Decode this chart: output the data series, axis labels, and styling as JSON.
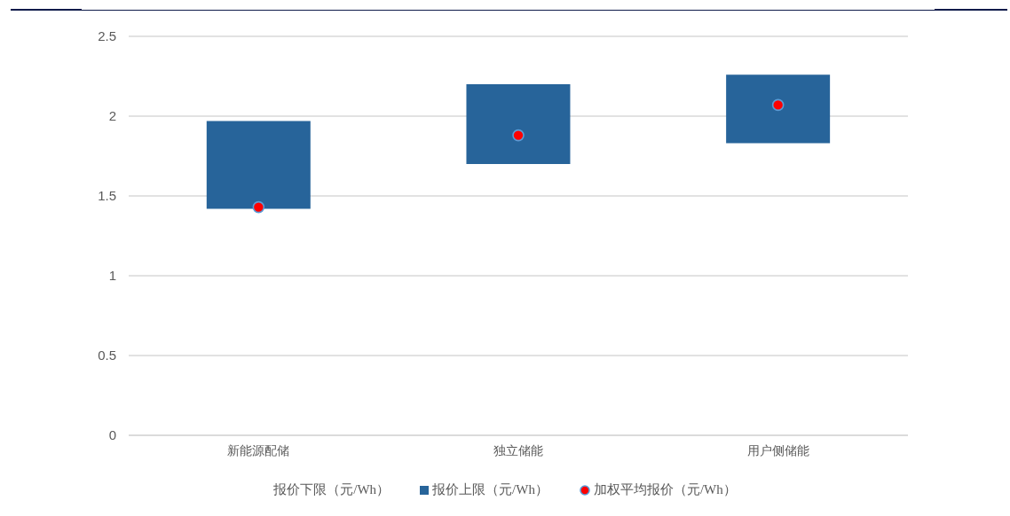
{
  "chart_data": {
    "type": "bar",
    "categories": [
      "新能源配储",
      "独立储能",
      "用户侧储能"
    ],
    "series": [
      {
        "name": "报价上限（元/Wh）",
        "color": "#27649a",
        "values": [
          0.55,
          0.5,
          0.43
        ],
        "base": [
          1.42,
          1.7,
          1.83
        ]
      },
      {
        "name": "加权平均报价（元/Wh）",
        "type": "scatter",
        "color": "#ff0000",
        "values": [
          1.43,
          1.88,
          2.07
        ]
      }
    ],
    "annotations": [
      "报价下限（元/Wh）"
    ],
    "ylim": [
      0,
      2.5
    ],
    "yticks": [
      0,
      0.5,
      1,
      1.5,
      2,
      2.5
    ],
    "grid": "y",
    "legend": "bottom",
    "marker": "circle"
  }
}
